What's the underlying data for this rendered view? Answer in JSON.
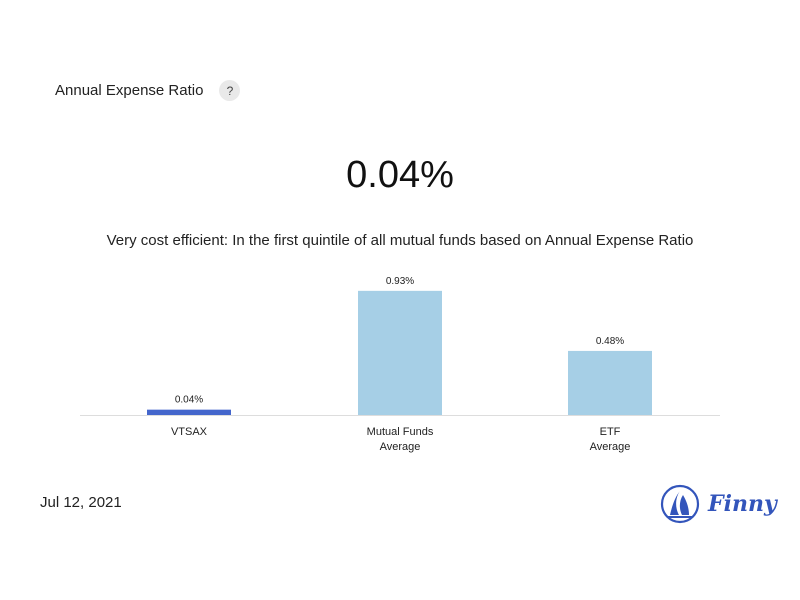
{
  "header": {
    "title": "Annual Expense Ratio",
    "help_label": "?"
  },
  "summary": {
    "value": "0.04%",
    "description": "Very cost efficient: In the first quintile of all mutual funds based on Annual Expense Ratio"
  },
  "chart_data": {
    "type": "bar",
    "categories": [
      [
        "VTSAX"
      ],
      [
        "Mutual Funds",
        "Average"
      ],
      [
        "ETF",
        "Average"
      ]
    ],
    "values": [
      0.04,
      0.93,
      0.48
    ],
    "value_labels": [
      "0.04%",
      "0.93%",
      "0.48%"
    ],
    "colors": [
      "#4466cc",
      "#a6cfe6",
      "#a6cfe6"
    ],
    "ylim": [
      0,
      1
    ],
    "grid": false,
    "legend": "none"
  },
  "footer": {
    "date": "Jul 12, 2021",
    "logo_text": "Finny",
    "logo_color": "#3355bb"
  }
}
